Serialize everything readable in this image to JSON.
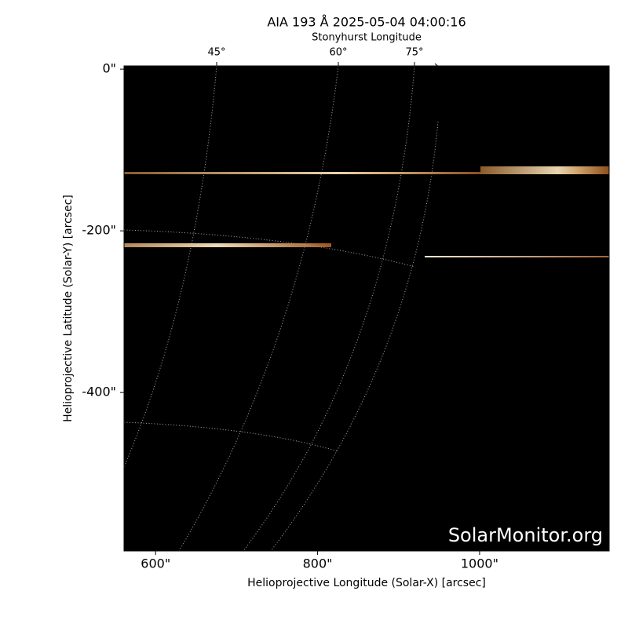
{
  "chart_data": {
    "type": "image",
    "title": "AIA 193 Å 2025-05-04 04:00:16",
    "top_axis_label": "Stonyhurst Longitude",
    "top_tick_labels": [
      "45°",
      "60°",
      "75°"
    ],
    "xlabel": "Helioprojective Longitude (Solar-X) [arcsec]",
    "ylabel": "Helioprojective Latitude (Solar-Y) [arcsec]",
    "xlim": [
      561,
      1160
    ],
    "ylim": [
      -596,
      4
    ],
    "xticks": [
      {
        "value": 600,
        "label": "600\""
      },
      {
        "value": 800,
        "label": "800\""
      },
      {
        "value": 1000,
        "label": "1000\""
      }
    ],
    "yticks": [
      {
        "value": 0,
        "label": "0\""
      },
      {
        "value": -200,
        "label": "-200\""
      },
      {
        "value": -400,
        "label": "-400\""
      }
    ],
    "watermark": "SolarMonitor.org"
  }
}
